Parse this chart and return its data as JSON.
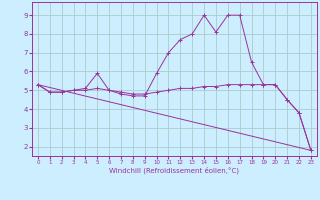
{
  "xlabel": "Windchill (Refroidissement éolien,°C)",
  "bg_color": "#cceeff",
  "grid_color": "#aacccc",
  "line_color": "#993399",
  "xlim": [
    -0.5,
    23.5
  ],
  "ylim": [
    1.5,
    9.7
  ],
  "xticks": [
    0,
    1,
    2,
    3,
    4,
    5,
    6,
    7,
    8,
    9,
    10,
    11,
    12,
    13,
    14,
    15,
    16,
    17,
    18,
    19,
    20,
    21,
    22,
    23
  ],
  "yticks": [
    2,
    3,
    4,
    5,
    6,
    7,
    8,
    9
  ],
  "series": [
    {
      "x": [
        0,
        1,
        2,
        3,
        4,
        5,
        6,
        7,
        8,
        9,
        10,
        11,
        12,
        13,
        14,
        15,
        16,
        17,
        18,
        19,
        20,
        21,
        22,
        23
      ],
      "y": [
        5.3,
        4.9,
        4.9,
        5.0,
        5.1,
        5.9,
        5.0,
        4.8,
        4.7,
        4.7,
        5.9,
        7.0,
        7.7,
        8.0,
        9.0,
        8.1,
        9.0,
        9.0,
        6.5,
        5.3,
        5.3,
        4.5,
        3.8,
        1.8
      ]
    },
    {
      "x": [
        0,
        1,
        2,
        3,
        4,
        5,
        6,
        7,
        8,
        9,
        10,
        11,
        12,
        13,
        14,
        15,
        16,
        17,
        18,
        19,
        20,
        21,
        22,
        23
      ],
      "y": [
        5.3,
        4.9,
        4.9,
        5.0,
        5.0,
        5.1,
        5.0,
        4.9,
        4.8,
        4.8,
        4.9,
        5.0,
        5.1,
        5.1,
        5.2,
        5.2,
        5.3,
        5.3,
        5.3,
        5.3,
        5.3,
        4.5,
        3.8,
        1.8
      ]
    },
    {
      "x": [
        0,
        23
      ],
      "y": [
        5.3,
        1.8
      ]
    }
  ]
}
